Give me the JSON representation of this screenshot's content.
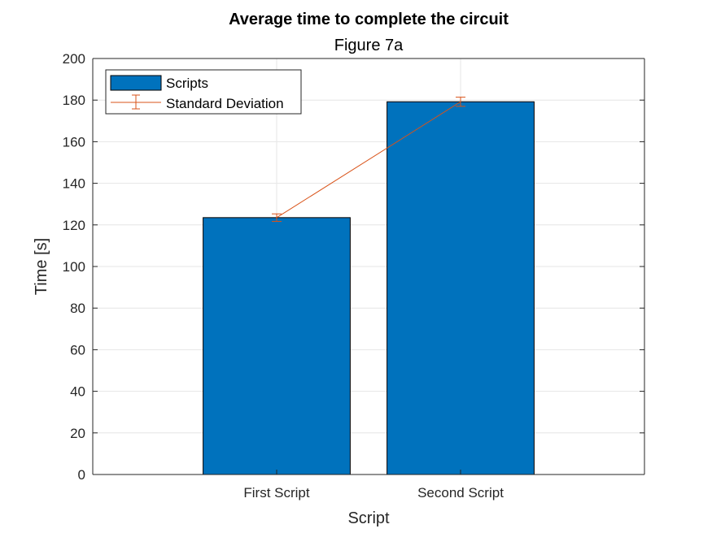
{
  "chart_data": {
    "type": "bar",
    "title": "Average time to complete the circuit",
    "subtitle": "Figure 7a",
    "xlabel": "Script",
    "ylabel": "Time [s]",
    "categories": [
      "First Script",
      "Second Script"
    ],
    "series": [
      {
        "name": "Scripts",
        "values": [
          123.5,
          179.2
        ],
        "color": "#0072BD"
      }
    ],
    "error_series": {
      "name": "Standard Deviation",
      "center": [
        123.5,
        179.2
      ],
      "error": [
        1.8,
        2.2
      ],
      "color": "#D95319"
    },
    "ylim": [
      0,
      200
    ],
    "yticks": [
      "0",
      "20",
      "40",
      "60",
      "80",
      "100",
      "120",
      "140",
      "160",
      "180",
      "200"
    ],
    "grid": true,
    "legend_position": "top-left"
  }
}
